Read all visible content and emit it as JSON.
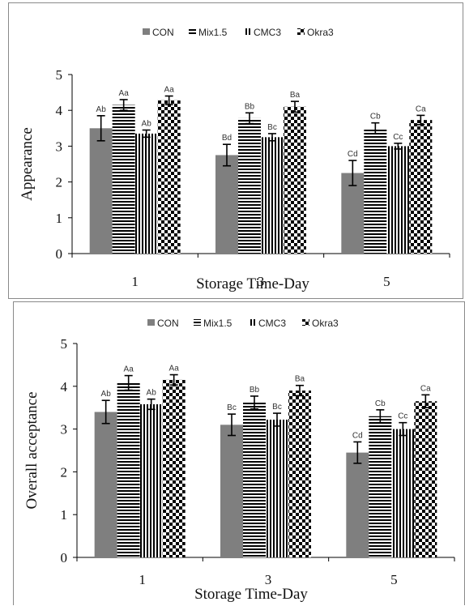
{
  "chart_data": [
    {
      "type": "bar",
      "ylabel": "Appearance",
      "xlabel": "Storage Time-Day",
      "categories": [
        "1",
        "3",
        "5"
      ],
      "yticks": [
        "0",
        "1",
        "2",
        "3",
        "4",
        "5"
      ],
      "ylim": [
        0,
        5
      ],
      "legend_position": "top-center",
      "grid": false,
      "series": [
        {
          "name": "CON",
          "pattern": "solid-gray",
          "values": [
            3.5,
            2.75,
            2.25
          ],
          "errors": [
            0.35,
            0.3,
            0.35
          ],
          "labels": [
            "Ab",
            "Bd",
            "Cd"
          ]
        },
        {
          "name": "Mix1.5",
          "pattern": "horizontal-stripes",
          "values": [
            4.15,
            3.78,
            3.5
          ],
          "errors": [
            0.15,
            0.15,
            0.15
          ],
          "labels": [
            "Aa",
            "Bb",
            "Cb"
          ]
        },
        {
          "name": "CMC3",
          "pattern": "vertical-stripes",
          "values": [
            3.35,
            3.25,
            3.0
          ],
          "errors": [
            0.1,
            0.1,
            0.08
          ],
          "labels": [
            "Ab",
            "Bc",
            "Cc"
          ]
        },
        {
          "name": "Okra3",
          "pattern": "checkerboard",
          "values": [
            4.28,
            4.1,
            3.73
          ],
          "errors": [
            0.12,
            0.15,
            0.13
          ],
          "labels": [
            "Aa",
            "Ba",
            "Ca"
          ]
        }
      ]
    },
    {
      "type": "bar",
      "ylabel": "Overall acceptance",
      "xlabel": "Storage Time-Day",
      "categories": [
        "1",
        "3",
        "5"
      ],
      "yticks": [
        "0",
        "1",
        "2",
        "3",
        "4",
        "5"
      ],
      "ylim": [
        0,
        5
      ],
      "legend_position": "top-center",
      "grid": false,
      "series": [
        {
          "name": "CON",
          "pattern": "solid-gray",
          "values": [
            3.4,
            3.1,
            2.45
          ],
          "errors": [
            0.27,
            0.25,
            0.25
          ],
          "labels": [
            "Ab",
            "Bc",
            "Cd"
          ]
        },
        {
          "name": "Mix1.5",
          "pattern": "horizontal-stripes",
          "values": [
            4.08,
            3.62,
            3.3
          ],
          "errors": [
            0.17,
            0.15,
            0.15
          ],
          "labels": [
            "Aa",
            "Bb",
            "Cb"
          ]
        },
        {
          "name": "CMC3",
          "pattern": "vertical-stripes",
          "values": [
            3.58,
            3.22,
            3.0
          ],
          "errors": [
            0.12,
            0.15,
            0.15
          ],
          "labels": [
            "Ab",
            "Bc",
            "Cc"
          ]
        },
        {
          "name": "Okra3",
          "pattern": "checkerboard",
          "values": [
            4.15,
            3.9,
            3.65
          ],
          "errors": [
            0.12,
            0.12,
            0.15
          ],
          "labels": [
            "Aa",
            "Ba",
            "Ca"
          ]
        }
      ]
    }
  ],
  "colors": {
    "con_fill": "#7f7f7f",
    "stripe": "#000000",
    "axis": "#000000"
  }
}
